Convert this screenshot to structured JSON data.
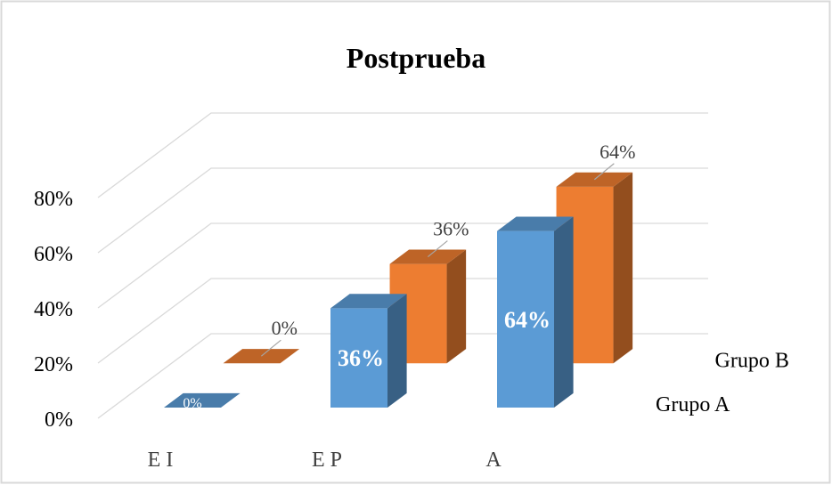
{
  "chart_data": {
    "type": "bar3d",
    "title": "Postprueba",
    "categories": [
      "E I",
      "E P",
      "A"
    ],
    "series": [
      {
        "name": "Grupo A",
        "color": "#5b9bd5",
        "values": [
          0,
          36,
          64
        ],
        "value_labels": [
          "0%",
          "36%",
          "64%"
        ]
      },
      {
        "name": "Grupo B",
        "color": "#ed7d31",
        "values": [
          0,
          36,
          64
        ],
        "value_labels": [
          "0%",
          "36%",
          "64%"
        ]
      }
    ],
    "ylim": [
      0,
      80
    ],
    "yticks": [
      {
        "value": 0,
        "label": "0%"
      },
      {
        "value": 20,
        "label": "20%"
      },
      {
        "value": 40,
        "label": "40%"
      },
      {
        "value": 60,
        "label": "60%"
      },
      {
        "value": 80,
        "label": "80%"
      }
    ],
    "grid": true
  }
}
